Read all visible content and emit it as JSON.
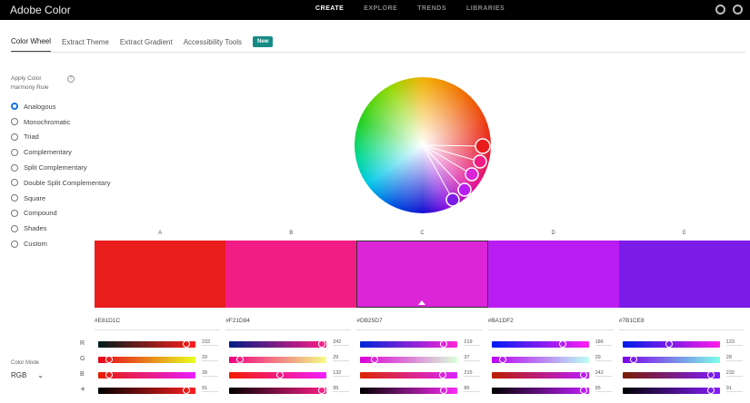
{
  "app": {
    "title": "Adobe Color"
  },
  "nav": [
    {
      "label": "CREATE",
      "active": true
    },
    {
      "label": "EXPLORE"
    },
    {
      "label": "TRENDS"
    },
    {
      "label": "LIBRARIES"
    }
  ],
  "tabs": [
    {
      "label": "Color Wheel",
      "active": true
    },
    {
      "label": "Extract Theme"
    },
    {
      "label": "Extract Gradient"
    },
    {
      "label": "Accessibility Tools"
    }
  ],
  "new_badge": "New",
  "harmony": {
    "title": "Apply Color Harmony Rule",
    "help": "?",
    "selected": "Analogous",
    "rules": [
      "Analogous",
      "Monochromatic",
      "Triad",
      "Complementary",
      "Split Complementary",
      "Double Split Complementary",
      "Square",
      "Compound",
      "Shades",
      "Custom"
    ]
  },
  "color_mode": {
    "label": "Color Mode",
    "value": "RGB"
  },
  "channel_labels": [
    "R",
    "G",
    "B"
  ],
  "brightness_icon": "sun-icon",
  "selected_swatch": "C",
  "swatches": [
    {
      "label": "A",
      "hex": "#E81D1C",
      "r": 232,
      "g": 29,
      "b": 28,
      "brightness": 91
    },
    {
      "label": "B",
      "hex": "#F21D84",
      "r": 242,
      "g": 29,
      "b": 132,
      "brightness": 95
    },
    {
      "label": "C",
      "hex": "#DB25D7",
      "r": 219,
      "g": 37,
      "b": 215,
      "brightness": 86
    },
    {
      "label": "D",
      "hex": "#BA1DF2",
      "r": 186,
      "g": 29,
      "b": 242,
      "brightness": 95
    },
    {
      "label": "E",
      "hex": "#7B1CE8",
      "r": 123,
      "g": 28,
      "b": 232,
      "brightness": 91
    }
  ]
}
